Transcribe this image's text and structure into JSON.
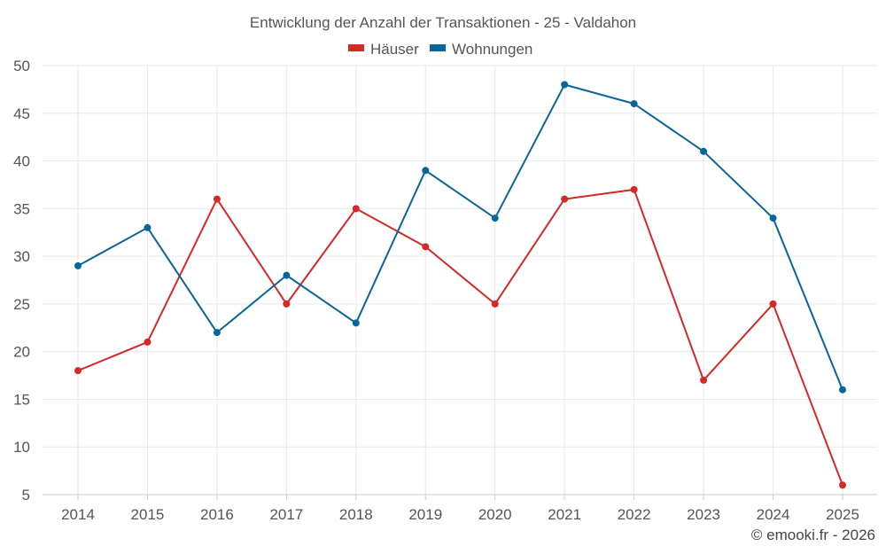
{
  "chart_data": {
    "type": "line",
    "title": "Entwicklung der Anzahl der Transaktionen - 25 - Valdahon",
    "categories": [
      "2014",
      "2015",
      "2016",
      "2017",
      "2018",
      "2019",
      "2020",
      "2021",
      "2022",
      "2023",
      "2024",
      "2025"
    ],
    "series": [
      {
        "name": "Häuser",
        "color": "#d62828",
        "values": [
          18,
          21,
          36,
          25,
          35,
          31,
          25,
          36,
          37,
          17,
          25,
          6
        ]
      },
      {
        "name": "Wohnungen",
        "color": "#0a6599",
        "values": [
          29,
          33,
          22,
          28,
          23,
          39,
          34,
          48,
          46,
          41,
          34,
          16
        ]
      }
    ],
    "ylim": [
      5,
      50
    ],
    "yticks": [
      5,
      10,
      15,
      20,
      25,
      30,
      35,
      40,
      45,
      50
    ],
    "grid": true,
    "legend_position": "top-center",
    "xlabel": "",
    "ylabel": "",
    "credit": "© emooki.fr - 2026"
  }
}
